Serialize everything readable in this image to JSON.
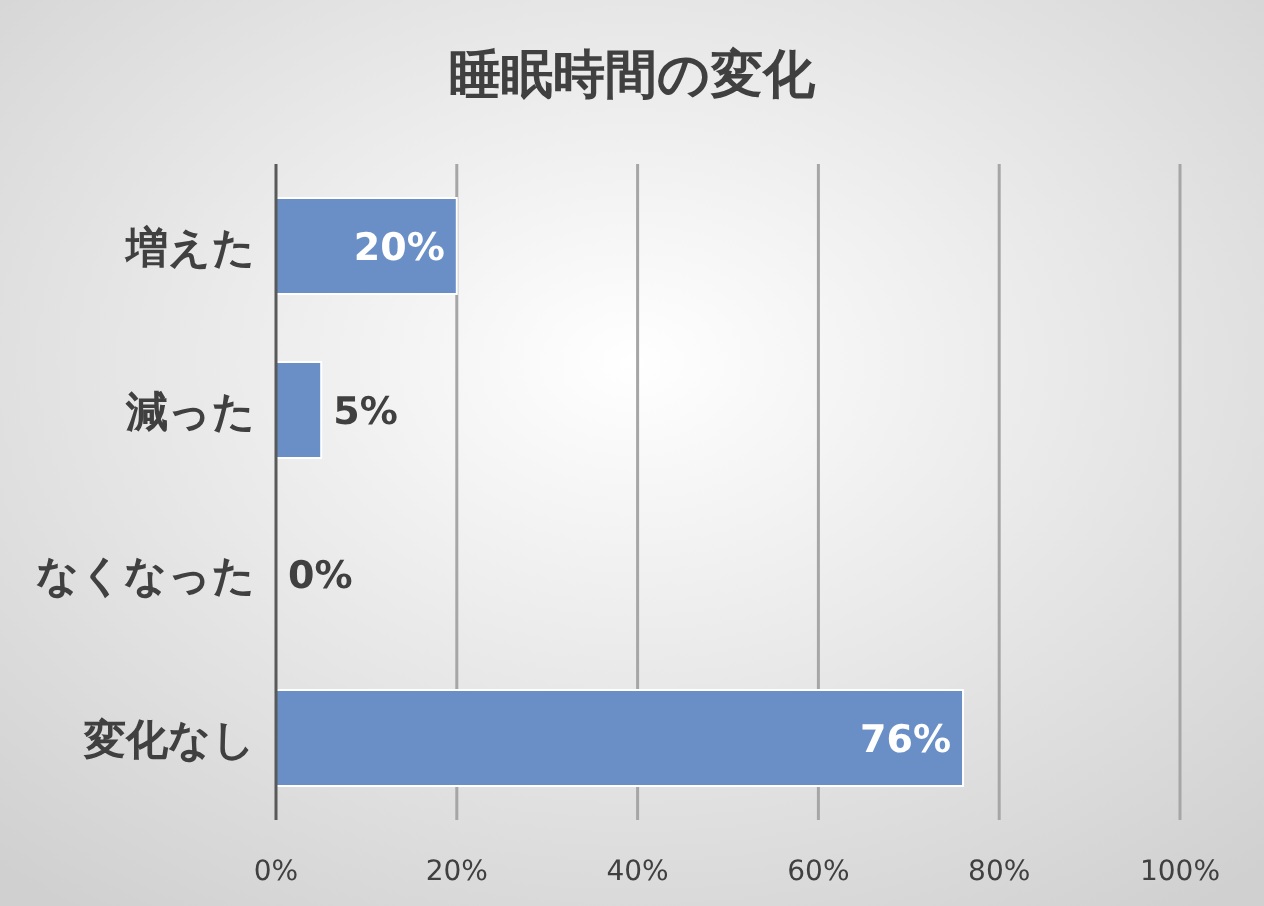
{
  "chart_data": {
    "type": "bar",
    "orientation": "horizontal",
    "title": "睡眠時間の変化",
    "categories": [
      "増えた",
      "減った",
      "なくなった",
      "変化なし"
    ],
    "values": [
      20,
      5,
      0,
      76
    ],
    "value_labels": [
      "20%",
      "5%",
      "0%",
      "76%"
    ],
    "color": "#6a8fc7",
    "xlim": [
      0,
      100
    ],
    "xticks": [
      {
        "value": 0,
        "label": "0%"
      },
      {
        "value": 20,
        "label": "20%"
      },
      {
        "value": 40,
        "label": "40%"
      },
      {
        "value": 60,
        "label": "60%"
      },
      {
        "value": 80,
        "label": "80%"
      },
      {
        "value": 100,
        "label": "100%"
      }
    ],
    "grid": "x"
  }
}
